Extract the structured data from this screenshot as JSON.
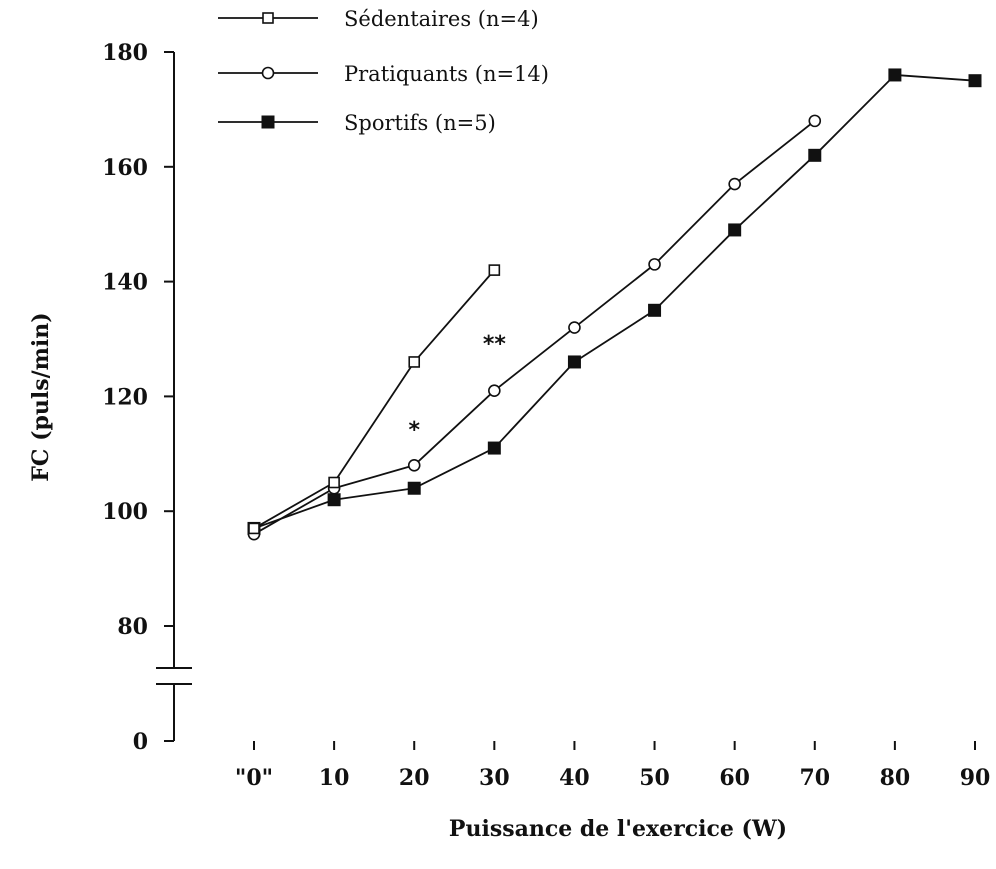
{
  "chart_data": {
    "type": "line",
    "title": "",
    "xlabel": "Puissance de l'exercice (W)",
    "ylabel": "FC (puls/min)",
    "x_ticks": [
      "\"0\"",
      "10",
      "20",
      "30",
      "40",
      "50",
      "60",
      "70",
      "80",
      "90"
    ],
    "x_tick_values": [
      0,
      10,
      20,
      30,
      40,
      50,
      60,
      70,
      80,
      90
    ],
    "y_ticks": [
      "180",
      "160",
      "140",
      "120",
      "100",
      "80",
      "0"
    ],
    "y_tick_values": [
      180,
      160,
      140,
      120,
      100,
      80,
      0
    ],
    "xlim": [
      0,
      90
    ],
    "ylim": [
      0,
      180
    ],
    "y_axis_break": "between 0 and 80",
    "grid": false,
    "legend_position": "top-left",
    "series": [
      {
        "name": "Sédentaires (n=4)",
        "marker": "open-square",
        "x": [
          0,
          10,
          20,
          30
        ],
        "y": [
          97,
          105,
          126,
          142
        ]
      },
      {
        "name": "Pratiquants (n=14)",
        "marker": "open-circle",
        "x": [
          0,
          10,
          20,
          30,
          40,
          50,
          60,
          70
        ],
        "y": [
          96,
          104,
          108,
          121,
          132,
          143,
          157,
          168
        ]
      },
      {
        "name": "Sportifs (n=5)",
        "marker": "filled-square",
        "x": [
          0,
          10,
          20,
          30,
          40,
          50,
          60,
          70,
          80,
          90
        ],
        "y": [
          97,
          102,
          104,
          111,
          126,
          135,
          149,
          162,
          176,
          175
        ]
      }
    ],
    "annotations": [
      {
        "text": "*",
        "x": 20,
        "y": 115
      },
      {
        "text": "**",
        "x": 30,
        "y": 130
      }
    ],
    "colors": {
      "line": "#111111",
      "background": "#ffffff"
    }
  }
}
